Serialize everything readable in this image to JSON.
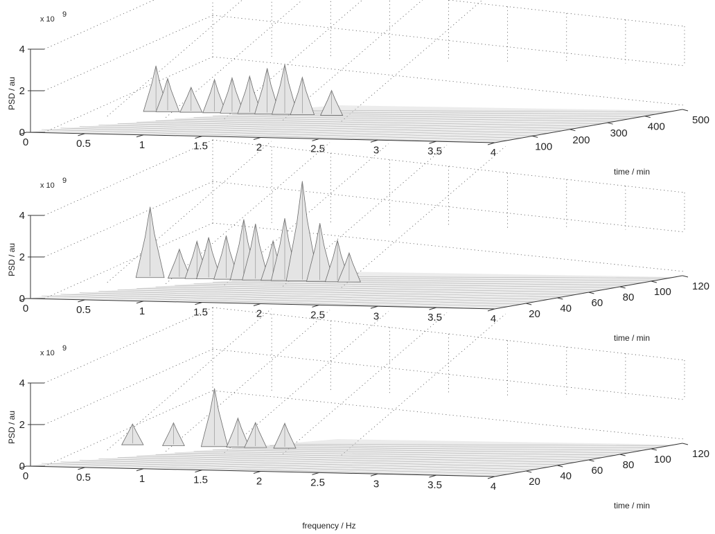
{
  "figure": {
    "x_label": "frequency / Hz"
  },
  "chart_data": [
    {
      "type": "surface",
      "ylabel": "PSD / au",
      "z_multiplier": "x 10",
      "z_exponent": "9",
      "z_ticks": [
        "0",
        "2",
        "4"
      ],
      "x_ticks": [
        "0",
        "0.5",
        "1",
        "1.5",
        "2",
        "2.5",
        "3",
        "3.5",
        "4"
      ],
      "y_ticks": [
        "100",
        "200",
        "300",
        "400",
        "500"
      ],
      "y_label": "time / min",
      "xlim": [
        0,
        4
      ],
      "ylim": [
        0,
        500
      ],
      "zlim": [
        0,
        4
      ],
      "grid": true,
      "peaks": [
        {
          "freq": 0.55,
          "psd": 2.0
        },
        {
          "freq": 0.65,
          "psd": 1.4
        },
        {
          "freq": 0.85,
          "psd": 1.0
        },
        {
          "freq": 1.05,
          "psd": 1.4
        },
        {
          "freq": 1.2,
          "psd": 1.5
        },
        {
          "freq": 1.35,
          "psd": 1.6
        },
        {
          "freq": 1.5,
          "psd": 2.0
        },
        {
          "freq": 1.65,
          "psd": 2.2
        },
        {
          "freq": 1.8,
          "psd": 1.6
        },
        {
          "freq": 2.05,
          "psd": 1.0
        }
      ]
    },
    {
      "type": "surface",
      "ylabel": "PSD / au",
      "z_multiplier": "x 10",
      "z_exponent": "9",
      "z_ticks": [
        "0",
        "2",
        "4"
      ],
      "x_ticks": [
        "0",
        "0.5",
        "1",
        "1.5",
        "2",
        "2.5",
        "3",
        "3.5",
        "4"
      ],
      "y_ticks": [
        "20",
        "40",
        "60",
        "80",
        "100",
        "120"
      ],
      "y_label": "time / min",
      "xlim": [
        0,
        4
      ],
      "ylim": [
        0,
        120
      ],
      "zlim": [
        0,
        4
      ],
      "grid": true,
      "peaks": [
        {
          "freq": 0.5,
          "psd": 3.2
        },
        {
          "freq": 0.75,
          "psd": 1.2
        },
        {
          "freq": 0.9,
          "psd": 1.6
        },
        {
          "freq": 1.0,
          "psd": 1.8
        },
        {
          "freq": 1.15,
          "psd": 1.9
        },
        {
          "freq": 1.3,
          "psd": 2.7
        },
        {
          "freq": 1.4,
          "psd": 2.5
        },
        {
          "freq": 1.55,
          "psd": 1.7
        },
        {
          "freq": 1.65,
          "psd": 2.8
        },
        {
          "freq": 1.8,
          "psd": 4.6
        },
        {
          "freq": 1.95,
          "psd": 2.6
        },
        {
          "freq": 2.1,
          "psd": 1.8
        },
        {
          "freq": 2.2,
          "psd": 1.2
        }
      ]
    },
    {
      "type": "surface",
      "ylabel": "PSD / au",
      "z_multiplier": "x 10",
      "z_exponent": "9",
      "z_ticks": [
        "0",
        "2",
        "4"
      ],
      "x_ticks": [
        "0",
        "0.5",
        "1",
        "1.5",
        "2",
        "2.5",
        "3",
        "3.5",
        "4"
      ],
      "y_ticks": [
        "20",
        "40",
        "60",
        "80",
        "100",
        "120"
      ],
      "y_label": "time / min",
      "xlim": [
        0,
        4
      ],
      "ylim": [
        0,
        120
      ],
      "zlim": [
        0,
        4
      ],
      "grid": true,
      "peaks": [
        {
          "freq": 0.35,
          "psd": 0.8
        },
        {
          "freq": 0.7,
          "psd": 0.9
        },
        {
          "freq": 1.05,
          "psd": 2.6
        },
        {
          "freq": 1.25,
          "psd": 1.2
        },
        {
          "freq": 1.4,
          "psd": 1.0
        },
        {
          "freq": 1.65,
          "psd": 1.0
        }
      ]
    }
  ]
}
